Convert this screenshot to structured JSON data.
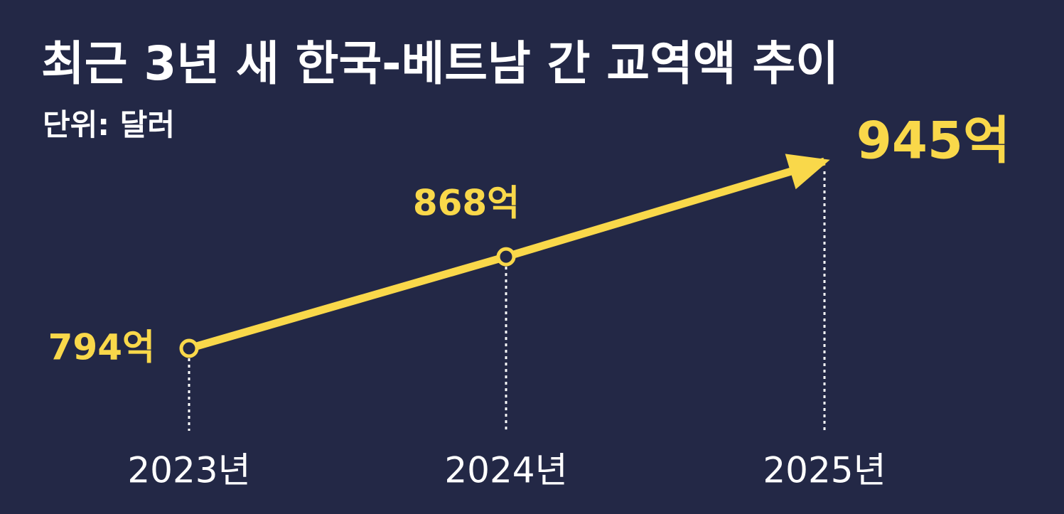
{
  "chart_data": {
    "type": "line",
    "title": "최근 3년 새 한국-베트남 간 교역액 추이",
    "subtitle": "단위: 달러",
    "categories": [
      "2023년",
      "2024년",
      "2025년"
    ],
    "values": [
      794,
      868,
      945
    ],
    "value_labels": [
      "794억",
      "868억",
      "945억"
    ],
    "color": "#f9d84a"
  }
}
